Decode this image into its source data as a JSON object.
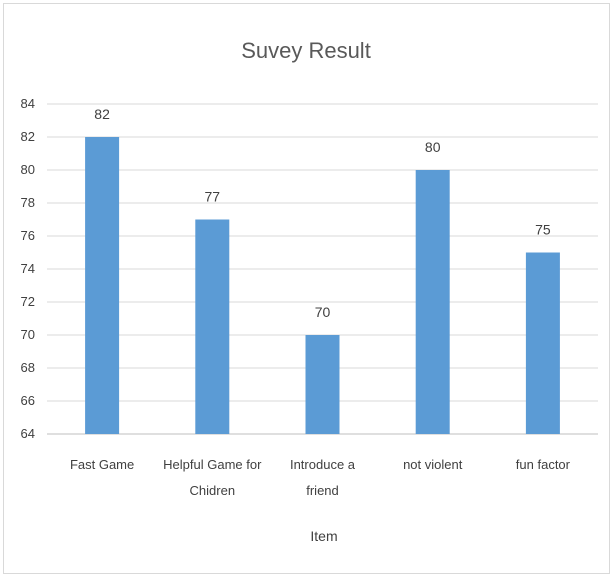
{
  "chart_data": {
    "type": "bar",
    "title": "Suvey Result",
    "xlabel": "Item",
    "ylabel": "",
    "categories": [
      [
        "Fast Game"
      ],
      [
        "Helpful Game for",
        "Chidren"
      ],
      [
        "Introduce a",
        "friend"
      ],
      [
        "not violent"
      ],
      [
        "fun factor"
      ]
    ],
    "values": [
      82,
      77,
      70,
      80,
      75
    ],
    "ylim": [
      64,
      84
    ],
    "yticks": [
      64,
      66,
      68,
      70,
      72,
      74,
      76,
      78,
      80,
      82,
      84
    ],
    "grid": true,
    "legend": "none",
    "colors": {
      "bar": "#5b9bd5",
      "grid": "#d9d9d9",
      "text": "#404040",
      "title": "#595959"
    }
  }
}
